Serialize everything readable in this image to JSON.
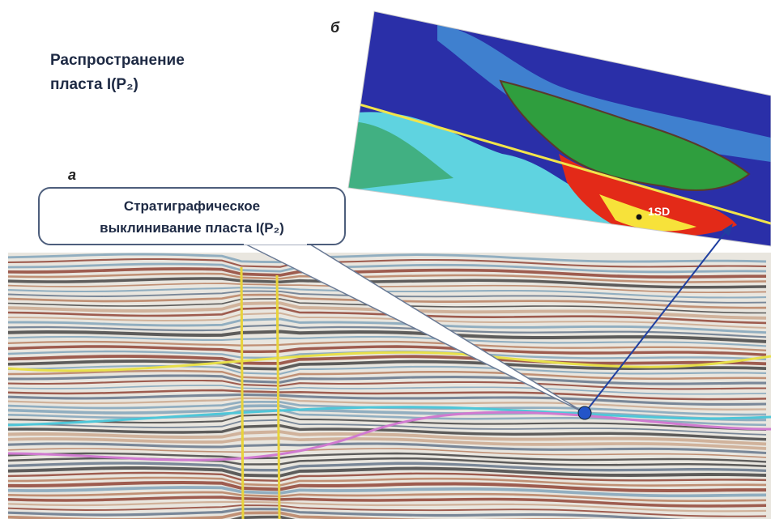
{
  "figure_title": {
    "line1": "Распространение",
    "line2": "пласта I(P₂)"
  },
  "panel_a_label": "а",
  "panel_b_label": "б",
  "callout": {
    "line1": "Стратиграфическое",
    "line2": "выклинивание пласта I(P₂)"
  },
  "well_label": "1SD"
}
